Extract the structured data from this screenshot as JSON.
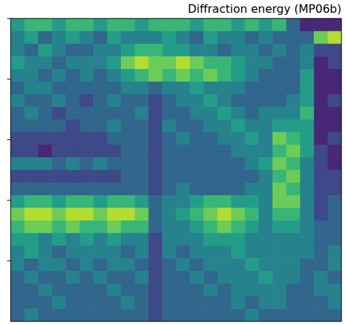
{
  "chart_data": {
    "type": "heatmap",
    "title": "Diffraction energy (MP06b)",
    "ylim": [
      0,
      5
    ],
    "yticks": [
      0,
      1,
      2,
      3,
      4
    ],
    "tick_labels": false,
    "zlim": [
      0,
      9
    ],
    "cells": [
      [
        5,
        6,
        6,
        5,
        6,
        6,
        5,
        6,
        6,
        5,
        6,
        6,
        6,
        5,
        6,
        6,
        5,
        6,
        5,
        6,
        3,
        1,
        1,
        1
      ],
      [
        4,
        5,
        3,
        4,
        5,
        4,
        3,
        5,
        4,
        4,
        4,
        5,
        4,
        3,
        5,
        4,
        4,
        3,
        4,
        3,
        3,
        3,
        7,
        8
      ],
      [
        4,
        3,
        5,
        4,
        3,
        3,
        4,
        4,
        5,
        6,
        6,
        5,
        5,
        4,
        4,
        3,
        4,
        4,
        3,
        4,
        3,
        4,
        2,
        2
      ],
      [
        5,
        4,
        4,
        3,
        4,
        4,
        4,
        5,
        7,
        8,
        7,
        7,
        8,
        7,
        6,
        6,
        5,
        4,
        4,
        3,
        3,
        4,
        1,
        2
      ],
      [
        4,
        4,
        3,
        4,
        3,
        4,
        3,
        4,
        5,
        6,
        7,
        6,
        7,
        6,
        7,
        6,
        5,
        4,
        3,
        3,
        3,
        5,
        1,
        1
      ],
      [
        3,
        4,
        4,
        3,
        3,
        3,
        3,
        3,
        4,
        4,
        3,
        4,
        4,
        5,
        4,
        4,
        4,
        3,
        3,
        3,
        3,
        5,
        1,
        1
      ],
      [
        4,
        3,
        3,
        4,
        3,
        2,
        3,
        4,
        3,
        3,
        2,
        3,
        4,
        4,
        5,
        4,
        3,
        3,
        3,
        3,
        4,
        5,
        1,
        2
      ],
      [
        3,
        4,
        3,
        2,
        3,
        3,
        3,
        3,
        3,
        4,
        2,
        3,
        3,
        4,
        4,
        5,
        4,
        3,
        4,
        4,
        4,
        6,
        1,
        1
      ],
      [
        3,
        3,
        3,
        3,
        2,
        3,
        3,
        4,
        3,
        3,
        2,
        4,
        3,
        3,
        4,
        4,
        5,
        4,
        4,
        5,
        5,
        5,
        1,
        1
      ],
      [
        2,
        2,
        2,
        2,
        2,
        2,
        2,
        3,
        3,
        3,
        2,
        3,
        4,
        3,
        3,
        4,
        4,
        5,
        4,
        7,
        6,
        5,
        1,
        2
      ],
      [
        2,
        2,
        1,
        2,
        2,
        2,
        2,
        2,
        3,
        3,
        2,
        3,
        3,
        3,
        3,
        3,
        4,
        4,
        4,
        6,
        7,
        5,
        2,
        1
      ],
      [
        4,
        4,
        4,
        3,
        4,
        3,
        4,
        3,
        3,
        3,
        2,
        3,
        3,
        3,
        3,
        3,
        3,
        4,
        5,
        7,
        6,
        4,
        2,
        1
      ],
      [
        2,
        2,
        2,
        2,
        2,
        2,
        2,
        2,
        3,
        3,
        2,
        3,
        3,
        3,
        3,
        3,
        3,
        3,
        4,
        6,
        7,
        4,
        2,
        2
      ],
      [
        3,
        3,
        3,
        3,
        3,
        3,
        3,
        3,
        3,
        3,
        2,
        3,
        4,
        3,
        3,
        3,
        3,
        4,
        4,
        7,
        6,
        4,
        2,
        2
      ],
      [
        5,
        6,
        6,
        5,
        6,
        6,
        5,
        6,
        6,
        5,
        3,
        4,
        4,
        5,
        6,
        6,
        5,
        5,
        4,
        7,
        7,
        4,
        2,
        3
      ],
      [
        7,
        8,
        8,
        7,
        8,
        8,
        7,
        8,
        8,
        7,
        3,
        4,
        5,
        6,
        7,
        8,
        7,
        6,
        4,
        6,
        6,
        4,
        2,
        3
      ],
      [
        6,
        7,
        7,
        6,
        7,
        6,
        6,
        7,
        6,
        6,
        3,
        4,
        4,
        5,
        6,
        7,
        6,
        5,
        4,
        5,
        5,
        4,
        3,
        3
      ],
      [
        5,
        5,
        4,
        5,
        4,
        5,
        4,
        5,
        4,
        4,
        2,
        4,
        4,
        4,
        5,
        5,
        5,
        4,
        4,
        4,
        4,
        4,
        3,
        3
      ],
      [
        4,
        5,
        4,
        3,
        4,
        4,
        4,
        4,
        3,
        4,
        2,
        4,
        3,
        4,
        4,
        4,
        5,
        4,
        4,
        4,
        4,
        4,
        3,
        4
      ],
      [
        4,
        3,
        4,
        4,
        3,
        4,
        3,
        4,
        4,
        3,
        2,
        3,
        4,
        3,
        4,
        4,
        4,
        5,
        4,
        4,
        4,
        3,
        3,
        4
      ],
      [
        3,
        4,
        3,
        3,
        4,
        3,
        4,
        3,
        3,
        4,
        2,
        3,
        3,
        4,
        3,
        4,
        4,
        4,
        5,
        4,
        4,
        3,
        4,
        3
      ],
      [
        3,
        3,
        4,
        3,
        3,
        3,
        3,
        4,
        3,
        3,
        2,
        3,
        3,
        3,
        4,
        3,
        4,
        4,
        4,
        4,
        3,
        3,
        4,
        4
      ],
      [
        3,
        3,
        3,
        4,
        3,
        3,
        3,
        3,
        4,
        3,
        2,
        3,
        3,
        3,
        3,
        3,
        4,
        3,
        4,
        4,
        3,
        3,
        3,
        4
      ],
      [
        3,
        4,
        3,
        3,
        3,
        3,
        3,
        3,
        3,
        3,
        2,
        3,
        3,
        3,
        3,
        3,
        3,
        4,
        3,
        3,
        3,
        3,
        3,
        3
      ]
    ]
  }
}
